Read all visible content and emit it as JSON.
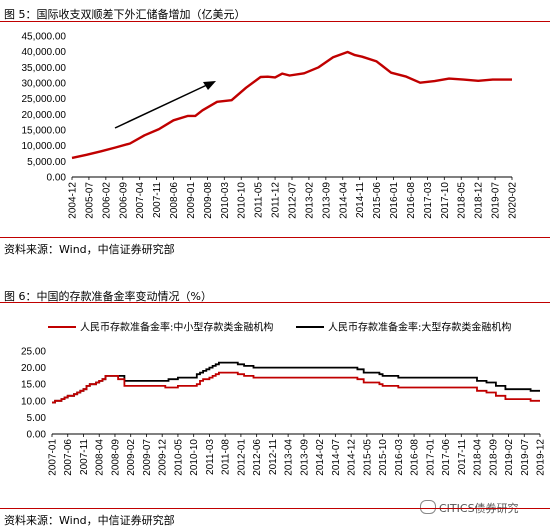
{
  "figure5": {
    "title": "图 5：国际收支双顺差下外汇储备增加（亿美元）",
    "source": "资料来源：Wind，中信证券研究部"
  },
  "figure6": {
    "title": "图 6：中国的存款准备金率变动情况（%）",
    "source": "资料来源：Wind，中信证券研究部"
  },
  "watermark": {
    "text": "CITICS债券研究"
  },
  "colors": {
    "red": "#c00000",
    "black": "#000000",
    "rule": "#c00000"
  },
  "chart_data": [
    {
      "type": "line",
      "ylim": [
        0,
        45000
      ],
      "yticks": [
        "0.00",
        "5,000.00",
        "10,000.00",
        "15,000.00",
        "20,000.00",
        "25,000.00",
        "30,000.00",
        "35,000.00",
        "40,000.00",
        "45,000.00"
      ],
      "x_start": "2004-12",
      "x_end": "2020-02",
      "xticks": [
        "2004-12",
        "2005-07",
        "2006-02",
        "2006-09",
        "2007-04",
        "2007-11",
        "2008-06",
        "2009-01",
        "2009-08",
        "2010-03",
        "2010-10",
        "2011-05",
        "2011-12",
        "2012-07",
        "2013-02",
        "2013-09",
        "2014-04",
        "2014-11",
        "2015-06",
        "2016-01",
        "2016-08",
        "2017-03",
        "2017-10",
        "2018-05",
        "2018-12",
        "2019-07",
        "2020-02"
      ],
      "annotation": "arrow",
      "series": [
        {
          "color": "#c00000",
          "points": [
            [
              "2004-12",
              6100
            ],
            [
              "2005-06",
              7100
            ],
            [
              "2005-12",
              8200
            ],
            [
              "2006-06",
              9400
            ],
            [
              "2006-12",
              10700
            ],
            [
              "2007-06",
              13300
            ],
            [
              "2007-12",
              15300
            ],
            [
              "2008-06",
              18100
            ],
            [
              "2008-12",
              19500
            ],
            [
              "2009-03",
              19500
            ],
            [
              "2009-06",
              21300
            ],
            [
              "2009-12",
              24000
            ],
            [
              "2010-06",
              24500
            ],
            [
              "2010-12",
              28500
            ],
            [
              "2011-06",
              31900
            ],
            [
              "2011-09",
              32000
            ],
            [
              "2011-12",
              31800
            ],
            [
              "2012-03",
              33000
            ],
            [
              "2012-06",
              32400
            ],
            [
              "2012-12",
              33100
            ],
            [
              "2013-06",
              35000
            ],
            [
              "2013-12",
              38200
            ],
            [
              "2014-06",
              39900
            ],
            [
              "2014-09",
              38900
            ],
            [
              "2014-12",
              38400
            ],
            [
              "2015-06",
              36900
            ],
            [
              "2015-12",
              33300
            ],
            [
              "2016-06",
              32100
            ],
            [
              "2016-12",
              30100
            ],
            [
              "2017-06",
              30600
            ],
            [
              "2017-12",
              31400
            ],
            [
              "2018-06",
              31100
            ],
            [
              "2018-12",
              30700
            ],
            [
              "2019-06",
              31100
            ],
            [
              "2019-12",
              31100
            ],
            [
              "2020-02",
              31100
            ]
          ]
        }
      ]
    },
    {
      "type": "line",
      "ylim": [
        0,
        25
      ],
      "yticks": [
        "0.00",
        "5.00",
        "10.00",
        "15.00",
        "20.00",
        "25.00"
      ],
      "x_start": "2007-01",
      "x_end": "2019-12",
      "xticks": [
        "2007-01",
        "2007-06",
        "2007-11",
        "2008-04",
        "2008-09",
        "2009-02",
        "2009-07",
        "2009-12",
        "2010-05",
        "2010-10",
        "2011-03",
        "2011-08",
        "2012-01",
        "2012-06",
        "2012-11",
        "2013-04",
        "2013-09",
        "2014-02",
        "2014-07",
        "2014-12",
        "2015-05",
        "2015-10",
        "2016-03",
        "2016-08",
        "2017-01",
        "2017-06",
        "2017-11",
        "2018-04",
        "2018-09",
        "2019-02",
        "2019-07",
        "2019-12"
      ],
      "series": [
        {
          "name": "人民币存款准备金率:中小型存款类金融机构",
          "color": "#c00000",
          "steps": [
            [
              "2007-01",
              9.5
            ],
            [
              "2007-02",
              10.0
            ],
            [
              "2007-04",
              10.5
            ],
            [
              "2007-05",
              11.0
            ],
            [
              "2007-06",
              11.5
            ],
            [
              "2007-08",
              12.0
            ],
            [
              "2007-09",
              12.5
            ],
            [
              "2007-10",
              13.0
            ],
            [
              "2007-11",
              13.5
            ],
            [
              "2007-12",
              14.5
            ],
            [
              "2008-01",
              15.0
            ],
            [
              "2008-03",
              15.5
            ],
            [
              "2008-04",
              16.0
            ],
            [
              "2008-05",
              16.5
            ],
            [
              "2008-06",
              17.5
            ],
            [
              "2008-10",
              16.5
            ],
            [
              "2008-12",
              14.5
            ],
            [
              "2010-01",
              14.0
            ],
            [
              "2010-05",
              14.5
            ],
            [
              "2010-11",
              15.0
            ],
            [
              "2010-12",
              16.0
            ],
            [
              "2011-01",
              16.5
            ],
            [
              "2011-03",
              17.0
            ],
            [
              "2011-04",
              17.5
            ],
            [
              "2011-05",
              18.0
            ],
            [
              "2011-06",
              18.5
            ],
            [
              "2011-12",
              18.0
            ],
            [
              "2012-02",
              17.5
            ],
            [
              "2012-05",
              17.0
            ],
            [
              "2015-02",
              16.5
            ],
            [
              "2015-04",
              15.5
            ],
            [
              "2015-09",
              15.0
            ],
            [
              "2015-10",
              14.5
            ],
            [
              "2016-03",
              14.0
            ],
            [
              "2018-04",
              13.0
            ],
            [
              "2018-07",
              12.5
            ],
            [
              "2018-10",
              11.5
            ],
            [
              "2019-01",
              10.5
            ],
            [
              "2019-09",
              10.0
            ]
          ]
        },
        {
          "name": "人民币存款准备金率:大型存款类金融机构",
          "color": "#000000",
          "steps": [
            [
              "2007-01",
              9.5
            ],
            [
              "2007-02",
              10.0
            ],
            [
              "2007-04",
              10.5
            ],
            [
              "2007-05",
              11.0
            ],
            [
              "2007-06",
              11.5
            ],
            [
              "2007-08",
              12.0
            ],
            [
              "2007-09",
              12.5
            ],
            [
              "2007-10",
              13.0
            ],
            [
              "2007-11",
              13.5
            ],
            [
              "2007-12",
              14.5
            ],
            [
              "2008-01",
              15.0
            ],
            [
              "2008-03",
              15.5
            ],
            [
              "2008-04",
              16.0
            ],
            [
              "2008-05",
              16.5
            ],
            [
              "2008-06",
              17.5
            ],
            [
              "2008-12",
              16.0
            ],
            [
              "2010-01",
              16.0
            ],
            [
              "2010-02",
              16.5
            ],
            [
              "2010-05",
              17.0
            ],
            [
              "2010-11",
              18.0
            ],
            [
              "2010-12",
              18.5
            ],
            [
              "2011-01",
              19.0
            ],
            [
              "2011-02",
              19.5
            ],
            [
              "2011-03",
              20.0
            ],
            [
              "2011-04",
              20.5
            ],
            [
              "2011-05",
              21.0
            ],
            [
              "2011-06",
              21.5
            ],
            [
              "2011-12",
              21.0
            ],
            [
              "2012-02",
              20.5
            ],
            [
              "2012-05",
              20.0
            ],
            [
              "2015-02",
              19.5
            ],
            [
              "2015-04",
              18.5
            ],
            [
              "2015-06",
              18.5
            ],
            [
              "2015-09",
              18.0
            ],
            [
              "2015-10",
              17.5
            ],
            [
              "2016-03",
              17.0
            ],
            [
              "2018-04",
              16.0
            ],
            [
              "2018-07",
              15.5
            ],
            [
              "2018-10",
              14.5
            ],
            [
              "2019-01",
              13.5
            ],
            [
              "2019-09",
              13.0
            ]
          ]
        }
      ]
    }
  ]
}
